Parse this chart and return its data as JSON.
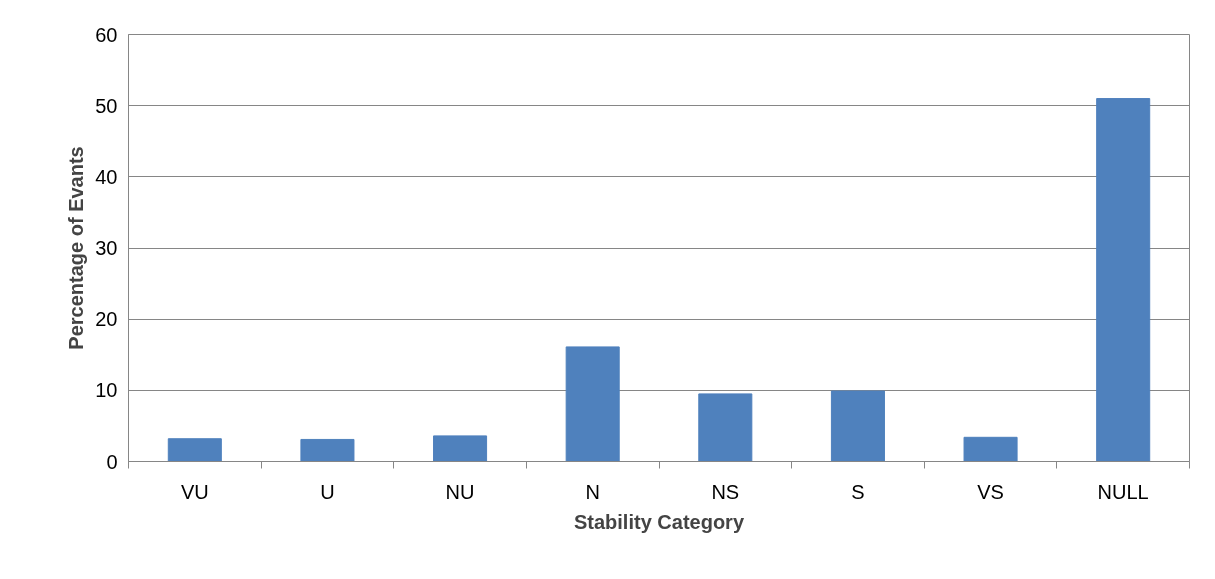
{
  "chart_data": {
    "type": "bar",
    "xlabel": "Stability Category",
    "ylabel": "Percentage of Evants",
    "categories": [
      "VU",
      "U",
      "NU",
      "N",
      "NS",
      "S",
      "VS",
      "NULL"
    ],
    "values": [
      3.2,
      3.1,
      3.6,
      16.1,
      9.5,
      9.9,
      3.4,
      51.0
    ],
    "color": "#4f81bd",
    "ylim": [
      0,
      60
    ],
    "yticks": [
      0,
      10,
      20,
      30,
      40,
      50,
      60
    ],
    "grid": "y"
  }
}
